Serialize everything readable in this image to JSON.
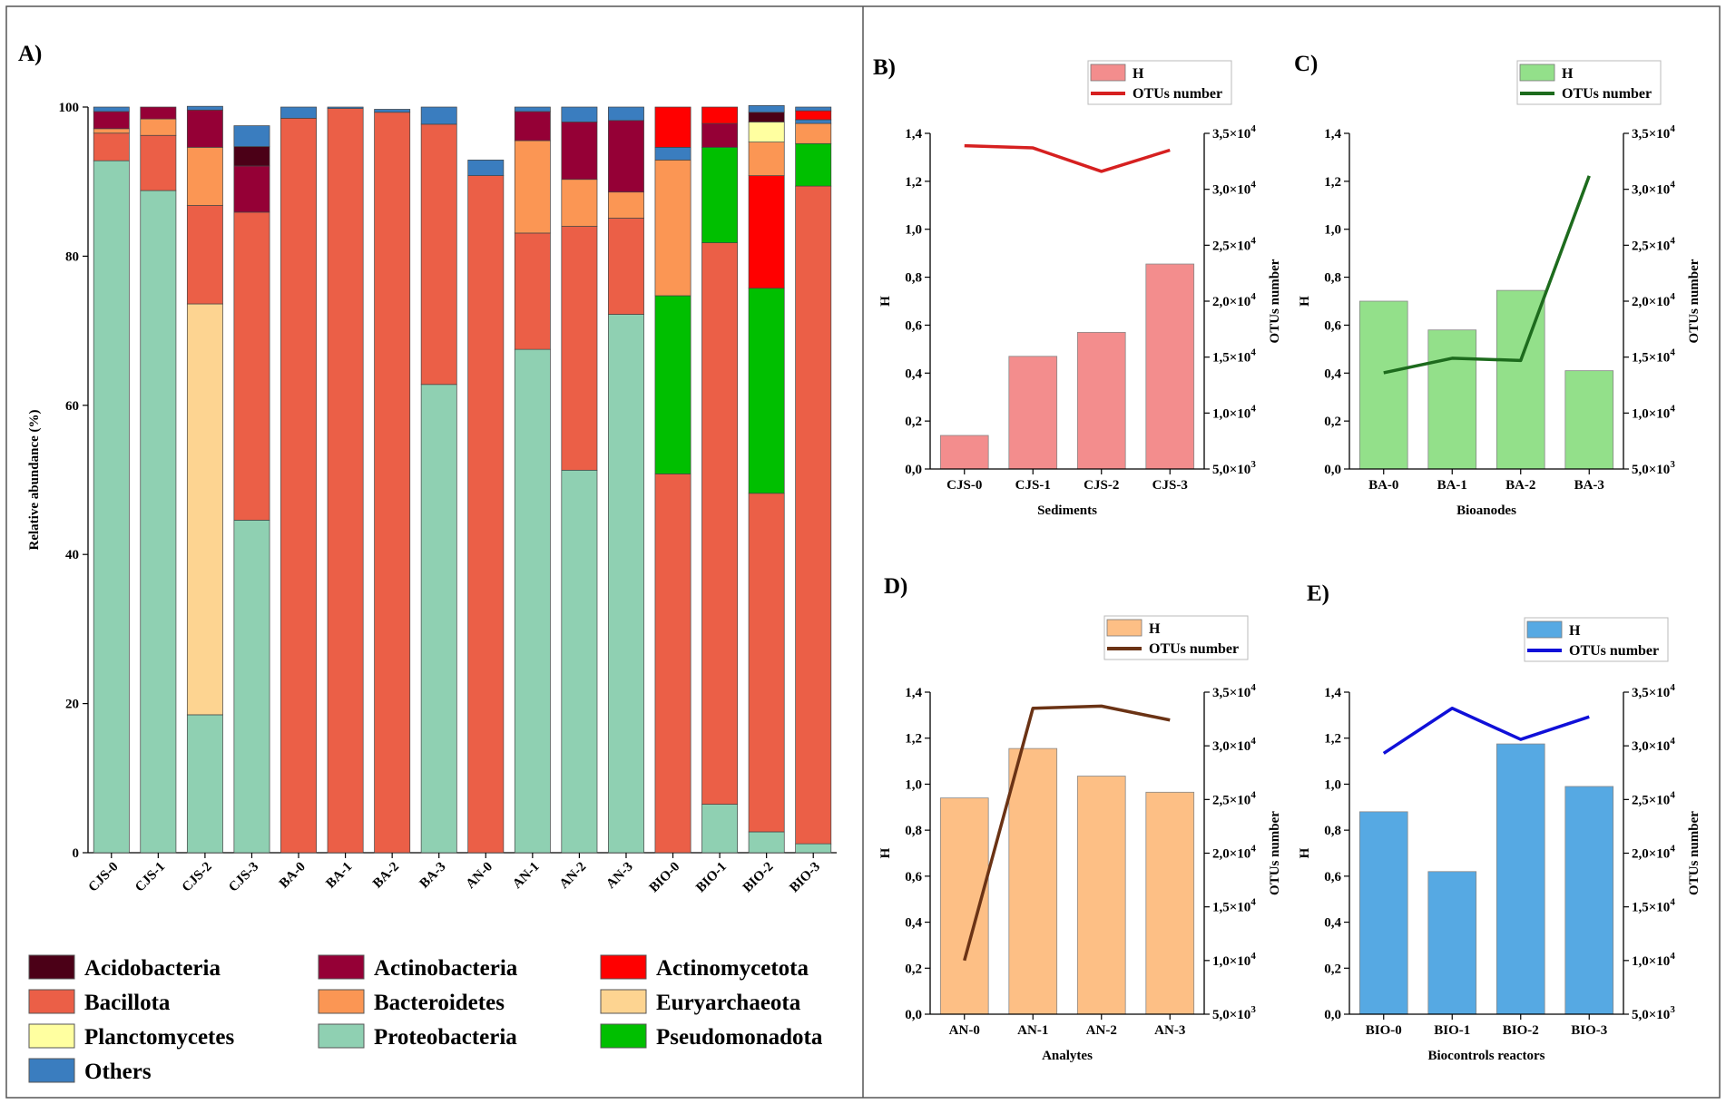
{
  "chart_data": [
    {
      "panel": "A)",
      "type": "stacked-bar",
      "ylabel": "Relative abundance (%)",
      "ylim": [
        0,
        100
      ],
      "yticks": [
        0,
        20,
        40,
        60,
        80,
        100
      ],
      "categories": [
        "CJS-0",
        "CJS-1",
        "CJS-2",
        "CJS-3",
        "BA-0",
        "BA-1",
        "BA-2",
        "BA-3",
        "AN-0",
        "AN-1",
        "AN-2",
        "AN-3",
        "BIO-0",
        "BIO-1",
        "BIO-2",
        "BIO-3"
      ],
      "series": [
        {
          "name": "Proteobacteria",
          "color": "#8fd0b2",
          "values": [
            92.8,
            88.8,
            18.5,
            44.6,
            0,
            0,
            0,
            62.8,
            0,
            67.5,
            51.3,
            72.2,
            0,
            6.5,
            2.8,
            1.2
          ]
        },
        {
          "name": "Euryarchaeota",
          "color": "#fdd491",
          "values": [
            0,
            0,
            55.1,
            0,
            0,
            0,
            0,
            0,
            0,
            0,
            0,
            0,
            0,
            0,
            0,
            0
          ]
        },
        {
          "name": "Bacillota",
          "color": "#eb5f47",
          "values": [
            3.7,
            7.4,
            13.2,
            41.3,
            98.5,
            99.8,
            99.3,
            34.9,
            90.8,
            15.6,
            32.7,
            12.9,
            50.8,
            75.3,
            45.4,
            88.2
          ]
        },
        {
          "name": "Pseudomonadota",
          "color": "#00bf00",
          "values": [
            0,
            0,
            0,
            0,
            0,
            0,
            0,
            0,
            0,
            0,
            0,
            0,
            23.9,
            12.8,
            27.5,
            5.7
          ]
        },
        {
          "name": "Actinomycetota",
          "color": "#ff0000",
          "values": [
            0,
            0,
            0,
            0,
            0,
            0,
            0,
            0,
            0,
            0,
            0,
            0,
            0,
            0,
            15.1,
            0
          ]
        },
        {
          "name": "Bacteroidetes",
          "color": "#fb9654",
          "values": [
            0.6,
            2.2,
            7.8,
            0,
            0,
            0,
            0,
            0,
            0,
            12.4,
            6.3,
            3.5,
            18.2,
            0,
            4.5,
            2.7
          ]
        },
        {
          "name": "Actinobacteria",
          "color": "#950036",
          "values": [
            2.3,
            1.6,
            5,
            6.2,
            0,
            0,
            0,
            0,
            0,
            3.9,
            7.7,
            9.6,
            0,
            3.2,
            0,
            0
          ]
        },
        {
          "name": "Planctomycetes",
          "color": "#ffffa0",
          "values": [
            0,
            0,
            0,
            0,
            0,
            0,
            0,
            0,
            0,
            0,
            0,
            0,
            0,
            0,
            2.7,
            0
          ]
        },
        {
          "name": "Acidobacteria",
          "color": "#4b0017",
          "values": [
            0,
            0,
            0,
            2.6,
            0,
            0,
            0,
            0,
            0,
            0,
            0,
            0,
            0,
            0,
            1.3,
            0
          ]
        },
        {
          "name": "Others",
          "color": "#3a7dbf",
          "values": [
            0.6,
            0,
            0.5,
            2.8,
            1.5,
            0.2,
            0.4,
            2.3,
            2.1,
            0.6,
            2,
            1.8,
            1.7,
            0,
            0.9,
            0.5
          ]
        },
        {
          "name": "Actinomycetota",
          "color": "#ff0000",
          "values": [
            0,
            0,
            0,
            0,
            0,
            0,
            0,
            0,
            0,
            0,
            0,
            0,
            5.4,
            2.2,
            0,
            1.2
          ]
        },
        {
          "name": "Others",
          "color": "#3a7dbf",
          "values": [
            0,
            0,
            0,
            0,
            0,
            0,
            0,
            0,
            0,
            0,
            0,
            0,
            0,
            0,
            0,
            0.5
          ]
        }
      ],
      "legend": [
        {
          "name": "Acidobacteria",
          "color": "#4b0017"
        },
        {
          "name": "Actinobacteria",
          "color": "#950036"
        },
        {
          "name": "Actinomycetota",
          "color": "#ff0000"
        },
        {
          "name": "Bacillota",
          "color": "#eb5f47"
        },
        {
          "name": "Bacteroidetes",
          "color": "#fb9654"
        },
        {
          "name": "Euryarchaeota",
          "color": "#fdd491"
        },
        {
          "name": "Planctomycetes",
          "color": "#ffffa0"
        },
        {
          "name": "Proteobacteria",
          "color": "#8fd0b2"
        },
        {
          "name": "Pseudomonadota",
          "color": "#00bf00"
        },
        {
          "name": "Others",
          "color": "#3a7dbf"
        }
      ]
    },
    {
      "panel": "B)",
      "type": "bar+line",
      "xlabel": "Sediments",
      "ylabel": "H",
      "y2label": "OTUs number",
      "bar_color": "#f38d8d",
      "line_color": "#d62020",
      "categories": [
        "CJS-0",
        "CJS-1",
        "CJS-2",
        "CJS-3"
      ],
      "bar_name": "H",
      "bar_values": [
        0.14,
        0.47,
        0.57,
        0.855
      ],
      "line_name": "OTUs number",
      "line_values": [
        33900,
        33700,
        31600,
        33500
      ],
      "ylim": [
        0,
        1.4
      ],
      "y2lim": [
        5000,
        35000
      ]
    },
    {
      "panel": "C)",
      "type": "bar+line",
      "xlabel": "Bioanodes",
      "ylabel": "H",
      "y2label": "OTUs number",
      "bar_color": "#93e08a",
      "line_color": "#1d6b1d",
      "categories": [
        "BA-0",
        "BA-1",
        "BA-2",
        "BA-3"
      ],
      "bar_name": "H",
      "bar_values": [
        0.7,
        0.58,
        0.745,
        0.41
      ],
      "line_name": "OTUs number",
      "line_values": [
        13600,
        14900,
        14700,
        31200
      ],
      "ylim": [
        0,
        1.4
      ],
      "y2lim": [
        5000,
        35000
      ]
    },
    {
      "panel": "D)",
      "type": "bar+line",
      "xlabel": "Analytes",
      "ylabel": "H",
      "y2label": "OTUs number",
      "bar_color": "#fdbf85",
      "line_color": "#6b3315",
      "categories": [
        "AN-0",
        "AN-1",
        "AN-2",
        "AN-3"
      ],
      "bar_name": "H",
      "bar_values": [
        0.94,
        1.155,
        1.035,
        0.965
      ],
      "line_name": "OTUs number",
      "line_values": [
        10000,
        33500,
        33700,
        32400
      ],
      "ylim": [
        0,
        1.4
      ],
      "y2lim": [
        5000,
        35000
      ]
    },
    {
      "panel": "E)",
      "type": "bar+line",
      "xlabel": "Biocontrols reactors",
      "ylabel": "H",
      "y2label": "OTUs number",
      "bar_color": "#56a9e3",
      "line_color": "#1010d8",
      "categories": [
        "BIO-0",
        "BIO-1",
        "BIO-2",
        "BIO-3"
      ],
      "bar_name": "H",
      "bar_values": [
        0.88,
        0.62,
        1.175,
        0.99
      ],
      "line_name": "OTUs number",
      "line_values": [
        29300,
        33500,
        30600,
        32700
      ],
      "ylim": [
        0,
        1.4
      ],
      "y2lim": [
        5000,
        35000
      ]
    }
  ],
  "h_ticks": [
    "0,0",
    "0,2",
    "0,4",
    "0,6",
    "0,8",
    "1,0",
    "1,2",
    "1,4"
  ],
  "otu_tick_mantissas": [
    "5,0×10",
    "1,0×10",
    "1,5×10",
    "2,0×10",
    "2,5×10",
    "3,0×10",
    "3,5×10"
  ],
  "otu_tick_exponents": [
    "3",
    "4",
    "4",
    "4",
    "4",
    "4",
    "4"
  ]
}
